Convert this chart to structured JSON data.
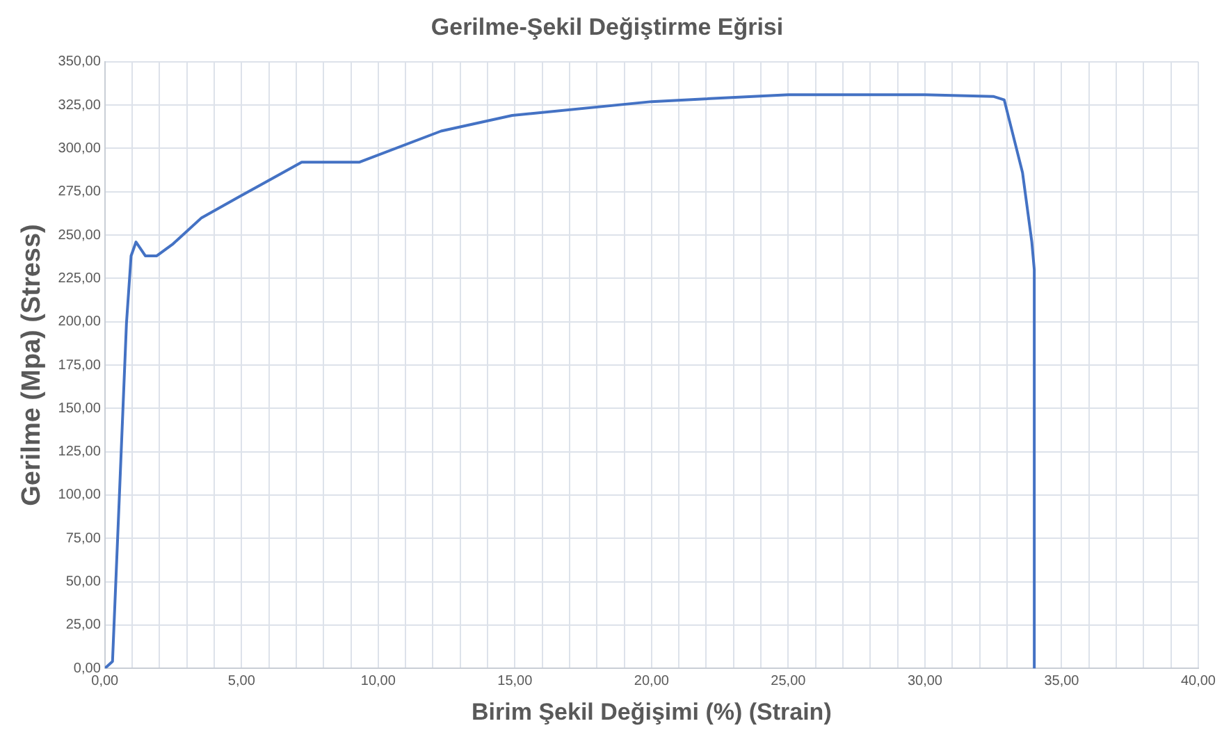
{
  "chart_data": {
    "type": "line",
    "title": "Gerilme-Şekil Değiştirme Eğrisi",
    "xlabel": "Birim Şekil Değişimi (%) (Strain)",
    "ylabel": "Gerilme (Mpa) (Stress)",
    "series": [
      {
        "color": "#4472c4",
        "x": [
          0,
          0.28,
          0.53,
          0.79,
          0.96,
          1.14,
          1.48,
          1.9,
          2.5,
          3.54,
          4.9,
          7.2,
          9.3,
          12.3,
          14.9,
          20,
          25,
          30,
          32.5,
          32.9,
          33.57,
          33.91,
          34,
          34
        ],
        "values": [
          0,
          4,
          99,
          199,
          238,
          246,
          238,
          238,
          245,
          260,
          272,
          292,
          292,
          310,
          319,
          327,
          331,
          331,
          330,
          328,
          286,
          246,
          230,
          0
        ]
      }
    ],
    "xlim": [
      0,
      40
    ],
    "xticks": [
      {
        "value": 0,
        "label": "0,00"
      },
      {
        "value": 1,
        "label": null
      },
      {
        "value": 2,
        "label": null
      },
      {
        "value": 3,
        "label": null
      },
      {
        "value": 4,
        "label": null
      },
      {
        "value": 5,
        "label": "5,00"
      },
      {
        "value": 6,
        "label": null
      },
      {
        "value": 7,
        "label": null
      },
      {
        "value": 8,
        "label": null
      },
      {
        "value": 9,
        "label": null
      },
      {
        "value": 10,
        "label": "10,00"
      },
      {
        "value": 11,
        "label": null
      },
      {
        "value": 12,
        "label": null
      },
      {
        "value": 13,
        "label": null
      },
      {
        "value": 14,
        "label": null
      },
      {
        "value": 15,
        "label": "15,00"
      },
      {
        "value": 16,
        "label": null
      },
      {
        "value": 17,
        "label": null
      },
      {
        "value": 18,
        "label": null
      },
      {
        "value": 19,
        "label": null
      },
      {
        "value": 20,
        "label": "20,00"
      },
      {
        "value": 21,
        "label": null
      },
      {
        "value": 22,
        "label": null
      },
      {
        "value": 23,
        "label": null
      },
      {
        "value": 24,
        "label": null
      },
      {
        "value": 25,
        "label": "25,00"
      },
      {
        "value": 26,
        "label": null
      },
      {
        "value": 27,
        "label": null
      },
      {
        "value": 28,
        "label": null
      },
      {
        "value": 29,
        "label": null
      },
      {
        "value": 30,
        "label": "30,00"
      },
      {
        "value": 31,
        "label": null
      },
      {
        "value": 32,
        "label": null
      },
      {
        "value": 33,
        "label": null
      },
      {
        "value": 34,
        "label": null
      },
      {
        "value": 35,
        "label": "35,00"
      },
      {
        "value": 36,
        "label": null
      },
      {
        "value": 37,
        "label": null
      },
      {
        "value": 38,
        "label": null
      },
      {
        "value": 39,
        "label": null
      },
      {
        "value": 40,
        "label": "40,00"
      }
    ],
    "ylim": [
      0,
      350
    ],
    "yticks": [
      {
        "value": 0,
        "label": "0,00"
      },
      {
        "value": 25,
        "label": "25,00"
      },
      {
        "value": 50,
        "label": "50,00"
      },
      {
        "value": 75,
        "label": "75,00"
      },
      {
        "value": 100,
        "label": "100,00"
      },
      {
        "value": 125,
        "label": "125,00"
      },
      {
        "value": 150,
        "label": "150,00"
      },
      {
        "value": 175,
        "label": "175,00"
      },
      {
        "value": 200,
        "label": "200,00"
      },
      {
        "value": 225,
        "label": "225,00"
      },
      {
        "value": 250,
        "label": "250,00"
      },
      {
        "value": 275,
        "label": "275,00"
      },
      {
        "value": 300,
        "label": "300,00"
      },
      {
        "value": 325,
        "label": "325,00"
      },
      {
        "value": 350,
        "label": "350,00"
      }
    ],
    "grid": true,
    "legend": false,
    "marker": "none",
    "line_style": "solid"
  }
}
